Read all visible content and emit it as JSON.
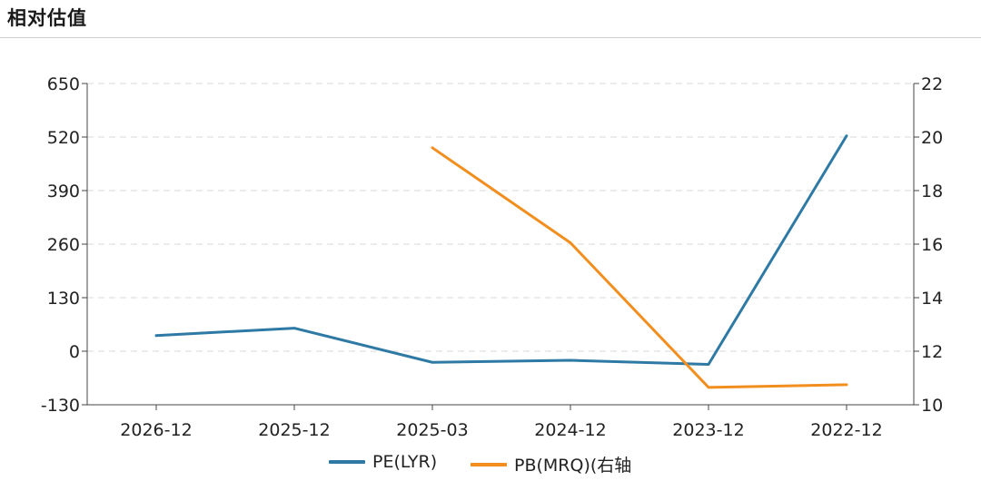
{
  "header": {
    "title": "相对估值"
  },
  "colors": {
    "pe": "#2e7aa5",
    "pb": "#f28e1e",
    "grid": "#d8d8d8",
    "axis": "#444444"
  },
  "chart_data": {
    "type": "line",
    "categories": [
      "2026-12",
      "2025-12",
      "2025-03",
      "2024-12",
      "2023-12",
      "2022-12"
    ],
    "y_left": {
      "ticks": [
        "650",
        "520",
        "390",
        "260",
        "130",
        "0",
        "-130"
      ],
      "range": [
        -130,
        650
      ]
    },
    "y_right": {
      "ticks": [
        "22",
        "20",
        "18",
        "16",
        "14",
        "12",
        "10"
      ],
      "range": [
        10,
        22
      ]
    },
    "grid": true,
    "legend_position": "bottom-center",
    "series": [
      {
        "name": "PE(LYR)",
        "axis": "left",
        "values": [
          38,
          56,
          -27,
          -22,
          -32,
          523
        ]
      },
      {
        "name": "PB(MRQ)(右轴",
        "axis": "right",
        "values": [
          null,
          null,
          19.6,
          16.05,
          10.65,
          10.75
        ]
      }
    ]
  }
}
